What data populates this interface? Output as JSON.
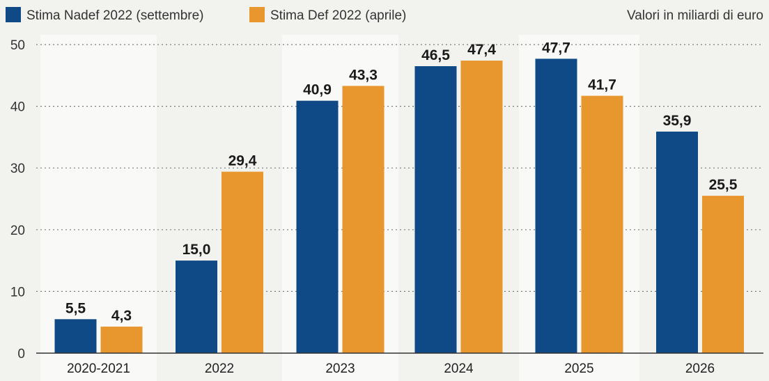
{
  "chart_data": {
    "type": "bar",
    "title": "",
    "xlabel": "",
    "ylabel": "",
    "unit_note": "Valori in miliardi di euro",
    "categories": [
      "2020-2021",
      "2022",
      "2023",
      "2024",
      "2025",
      "2026"
    ],
    "series": [
      {
        "name": "Stima Nadef 2022 (settembre)",
        "color": "#0f4a87",
        "values": [
          5.5,
          15.0,
          40.9,
          46.5,
          47.7,
          35.9
        ],
        "labels": [
          "5,5",
          "15,0",
          "40,9",
          "46,5",
          "47,7",
          "35,9"
        ]
      },
      {
        "name": "Stima Def 2022 (aprile)",
        "color": "#e8962e",
        "values": [
          4.3,
          29.4,
          43.3,
          47.4,
          41.7,
          25.5
        ],
        "labels": [
          "4,3",
          "29,4",
          "43,3",
          "47,4",
          "41,7",
          "25,5"
        ]
      }
    ],
    "yticks": [
      0,
      10,
      20,
      30,
      40,
      50
    ],
    "ylim": [
      0,
      50
    ],
    "grid": true,
    "legend_position": "top-left"
  }
}
